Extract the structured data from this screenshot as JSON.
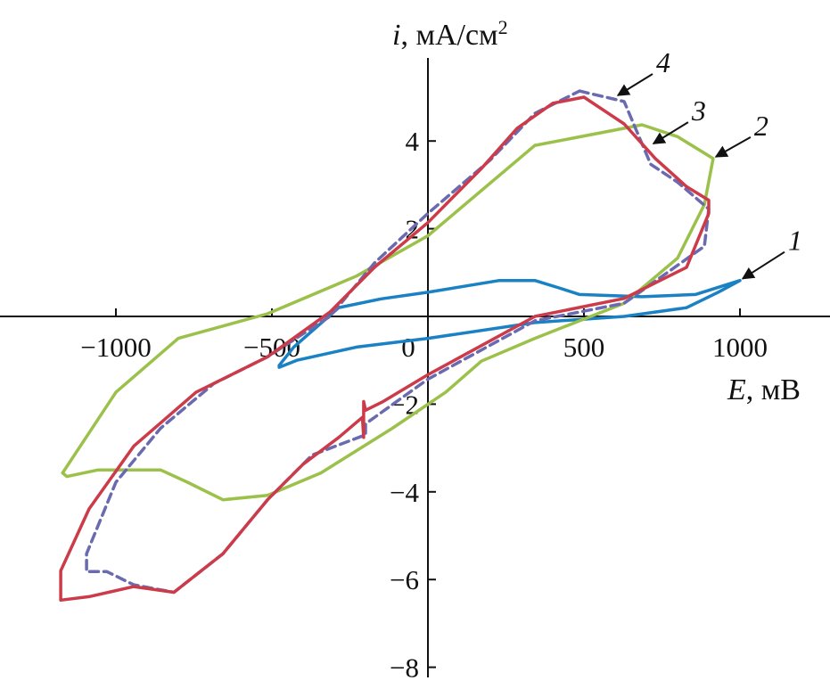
{
  "chart_data": {
    "type": "line",
    "title": "",
    "xlabel": {
      "var": "E",
      "unit": ", мВ"
    },
    "ylabel": {
      "var": "i",
      "unit": ", мА/см",
      "sup": "2"
    },
    "xlim": [
      -1370,
      1290
    ],
    "ylim": [
      -8.2,
      5.9
    ],
    "x_ticks": [
      -1000,
      -500,
      0,
      500,
      1000
    ],
    "x_tick_labels": [
      "−1000",
      "−500",
      "0",
      "500",
      "1000"
    ],
    "y_ticks": [
      4,
      2,
      -2,
      -4,
      -6,
      -8
    ],
    "y_tick_labels": [
      "4",
      "2",
      "−2",
      "−4",
      "−6",
      "−8"
    ],
    "grid": false,
    "series": [
      {
        "name": "1",
        "color": "#1a82c4",
        "dashed": false,
        "label_at": [
          1000,
          0.82
        ],
        "points": [
          [
            -477,
            -1.12
          ],
          [
            -430,
            -0.7
          ],
          [
            -286,
            0.2
          ],
          [
            -150,
            0.4
          ],
          [
            0,
            0.55
          ],
          [
            229,
            0.82
          ],
          [
            343,
            0.82
          ],
          [
            420,
            0.65
          ],
          [
            486,
            0.5
          ],
          [
            686,
            0.45
          ],
          [
            857,
            0.5
          ],
          [
            1000,
            0.82
          ],
          [
            930,
            0.55
          ],
          [
            829,
            0.2
          ],
          [
            629,
            0.0
          ],
          [
            343,
            -0.14
          ],
          [
            0,
            -0.5
          ],
          [
            -229,
            -0.7
          ],
          [
            -420,
            -1.0
          ],
          [
            -477,
            -1.16
          ]
        ]
      },
      {
        "name": "2",
        "color": "#9bc14a",
        "dashed": false,
        "label_at": [
          914,
          3.6
        ],
        "points": [
          [
            914,
            3.6
          ],
          [
            880,
            3.75
          ],
          [
            800,
            4.1
          ],
          [
            686,
            4.37
          ],
          [
            600,
            4.25
          ],
          [
            343,
            3.9
          ],
          [
            0,
            1.84
          ],
          [
            -229,
            0.92
          ],
          [
            -514,
            0.06
          ],
          [
            -800,
            -0.5
          ],
          [
            -1000,
            -1.73
          ],
          [
            -1171,
            -3.57
          ],
          [
            -1157,
            -3.65
          ],
          [
            -1057,
            -3.5
          ],
          [
            -857,
            -3.5
          ],
          [
            -771,
            -3.78
          ],
          [
            -657,
            -4.18
          ],
          [
            -514,
            -4.08
          ],
          [
            -343,
            -3.57
          ],
          [
            -114,
            -2.55
          ],
          [
            57,
            -1.73
          ],
          [
            171,
            -1.02
          ],
          [
            343,
            -0.5
          ],
          [
            629,
            0.3
          ],
          [
            800,
            1.33
          ],
          [
            886,
            2.55
          ],
          [
            914,
            3.6
          ]
        ]
      },
      {
        "name": "3",
        "color": "#6a6ab0",
        "dashed": true,
        "label_at": [
          714,
          3.9
        ],
        "points": [
          [
            486,
            5.14
          ],
          [
            629,
            4.9
          ],
          [
            714,
            3.47
          ],
          [
            800,
            3.06
          ],
          [
            900,
            2.45
          ],
          [
            886,
            1.6
          ],
          [
            629,
            0.3
          ],
          [
            343,
            -0.1
          ],
          [
            0,
            -1.43
          ],
          [
            -200,
            -2.45
          ],
          [
            -200,
            -2.7
          ],
          [
            -371,
            -3.16
          ],
          [
            -514,
            -4.18
          ],
          [
            -657,
            -5.41
          ],
          [
            -814,
            -6.29
          ],
          [
            -943,
            -6.12
          ],
          [
            -1029,
            -5.82
          ],
          [
            -1094,
            -5.82
          ],
          [
            -1094,
            -5.41
          ],
          [
            -1000,
            -3.78
          ],
          [
            -857,
            -2.55
          ],
          [
            -686,
            -1.53
          ],
          [
            -514,
            -0.92
          ],
          [
            -314,
            0.0
          ],
          [
            -171,
            1.22
          ],
          [
            0,
            2.35
          ],
          [
            200,
            3.57
          ],
          [
            343,
            4.63
          ],
          [
            486,
            5.14
          ]
        ]
      },
      {
        "name": "4",
        "color": "#cc3b4a",
        "dashed": false,
        "label_at": [
          600,
          5.0
        ],
        "points": [
          [
            500,
            5.0
          ],
          [
            629,
            4.39
          ],
          [
            729,
            3.6
          ],
          [
            829,
            2.96
          ],
          [
            900,
            2.65
          ],
          [
            900,
            2.35
          ],
          [
            829,
            1.12
          ],
          [
            629,
            0.41
          ],
          [
            343,
            0.0
          ],
          [
            0,
            -1.33
          ],
          [
            -143,
            -1.94
          ],
          [
            -200,
            -2.14
          ],
          [
            -206,
            -1.94
          ],
          [
            -206,
            -2.76
          ],
          [
            -210,
            -2.3
          ],
          [
            -286,
            -2.76
          ],
          [
            -400,
            -3.37
          ],
          [
            -514,
            -4.18
          ],
          [
            -657,
            -5.41
          ],
          [
            -814,
            -6.29
          ],
          [
            -943,
            -6.16
          ],
          [
            -1086,
            -6.39
          ],
          [
            -1177,
            -6.47
          ],
          [
            -1177,
            -5.8
          ],
          [
            -1086,
            -4.39
          ],
          [
            -943,
            -2.96
          ],
          [
            -743,
            -1.73
          ],
          [
            -514,
            -0.92
          ],
          [
            -314,
            0.1
          ],
          [
            -171,
            1.12
          ],
          [
            0,
            2.14
          ],
          [
            171,
            3.37
          ],
          [
            286,
            4.29
          ],
          [
            400,
            4.86
          ],
          [
            500,
            5.0
          ]
        ]
      }
    ]
  }
}
